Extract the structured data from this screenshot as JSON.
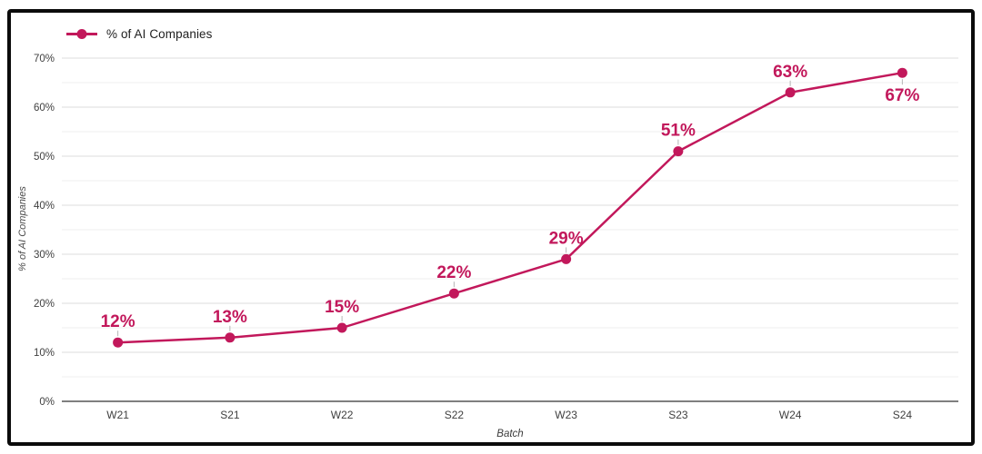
{
  "legend": {
    "label": "% of AI Companies"
  },
  "chart_data": {
    "type": "line",
    "title": "",
    "series_name": "% of AI Companies",
    "categories": [
      "W21",
      "S21",
      "W22",
      "S22",
      "W23",
      "S23",
      "W24",
      "S24"
    ],
    "values": [
      12,
      13,
      15,
      22,
      29,
      51,
      63,
      67
    ],
    "data_labels": [
      "12%",
      "13%",
      "15%",
      "22%",
      "29%",
      "51%",
      "63%",
      "67%"
    ],
    "label_positions": [
      "above",
      "above",
      "above",
      "above",
      "above",
      "above",
      "above",
      "below"
    ],
    "xlabel": "Batch",
    "ylabel": "% of AI Companies",
    "ylim": [
      0,
      70
    ],
    "ytick_step": 10,
    "ytick_minor_step": 5,
    "ytick_suffix": "%",
    "grid": true,
    "legend_position": "top-left",
    "colors": {
      "series": "#C2185B",
      "grid_major": "#dcdcdc",
      "grid_minor": "#efefef",
      "axis": "#555555",
      "tick_text": "#3f3f3f",
      "leader": "#b5b5b5"
    }
  }
}
